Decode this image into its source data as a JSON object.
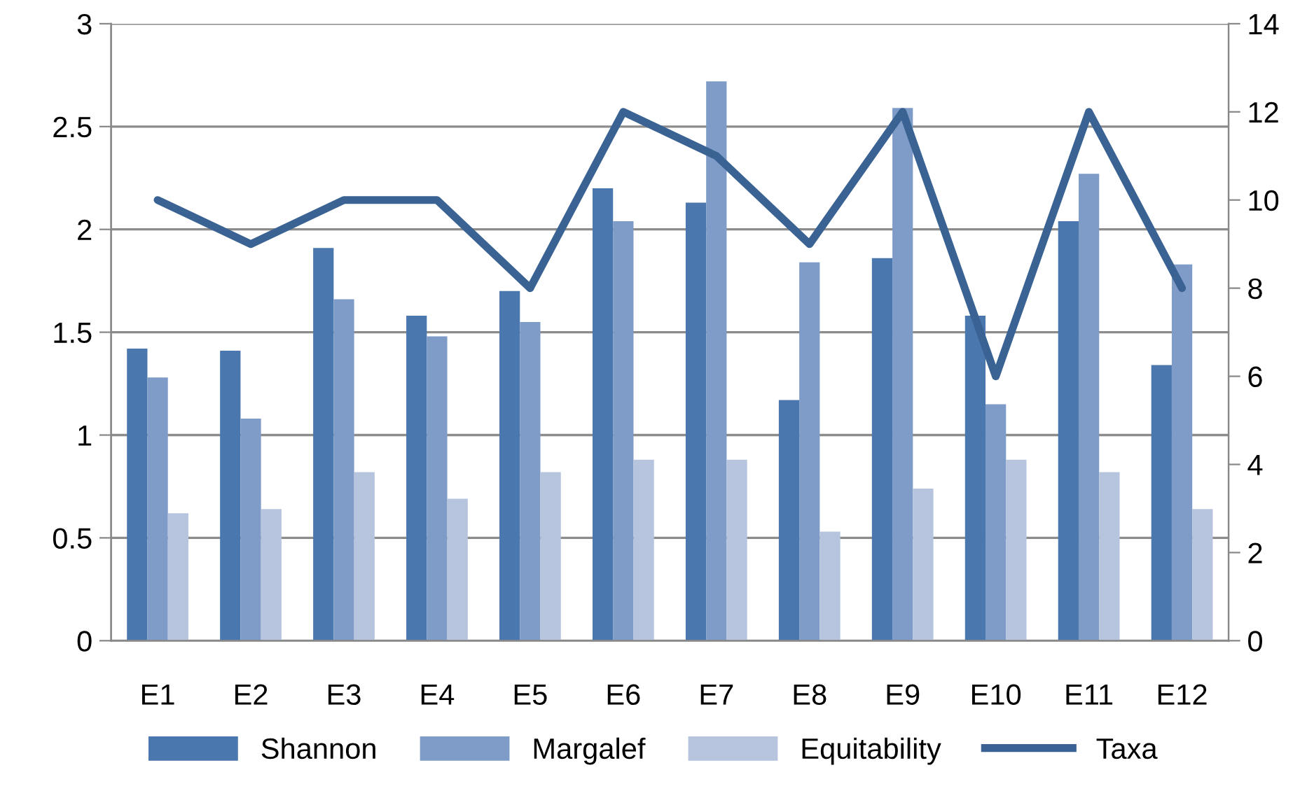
{
  "chart_data": {
    "type": "bar",
    "categories": [
      "E1",
      "E2",
      "E3",
      "E4",
      "E5",
      "E6",
      "E7",
      "E8",
      "E9",
      "E10",
      "E11",
      "E12"
    ],
    "series": [
      {
        "name": "Shannon",
        "color": "#4a77ae",
        "values": [
          1.42,
          1.41,
          1.91,
          1.58,
          1.7,
          2.2,
          2.13,
          1.17,
          1.86,
          1.58,
          2.04,
          1.34
        ]
      },
      {
        "name": "Margalef",
        "color": "#7f9cc8",
        "values": [
          1.28,
          1.08,
          1.66,
          1.48,
          1.55,
          2.04,
          2.72,
          1.84,
          2.59,
          1.15,
          2.27,
          1.83
        ]
      },
      {
        "name": "Equitability",
        "color": "#b6c4de",
        "values": [
          0.62,
          0.64,
          0.82,
          0.69,
          0.82,
          0.88,
          0.88,
          0.53,
          0.74,
          0.88,
          0.82,
          0.64
        ]
      },
      {
        "name": "Taxa",
        "type": "line",
        "axis": "y2",
        "color": "#3a6393",
        "values": [
          10,
          9,
          10,
          10,
          8,
          12,
          11,
          9,
          12,
          6,
          12,
          8
        ]
      }
    ],
    "ylim": [
      0,
      3
    ],
    "yticks": [
      0,
      0.5,
      1,
      1.5,
      2,
      2.5,
      3
    ],
    "y2lim": [
      0,
      14
    ],
    "y2ticks": [
      0,
      2,
      4,
      6,
      8,
      10,
      12,
      14
    ],
    "grid": "y",
    "legend": "bottom"
  }
}
